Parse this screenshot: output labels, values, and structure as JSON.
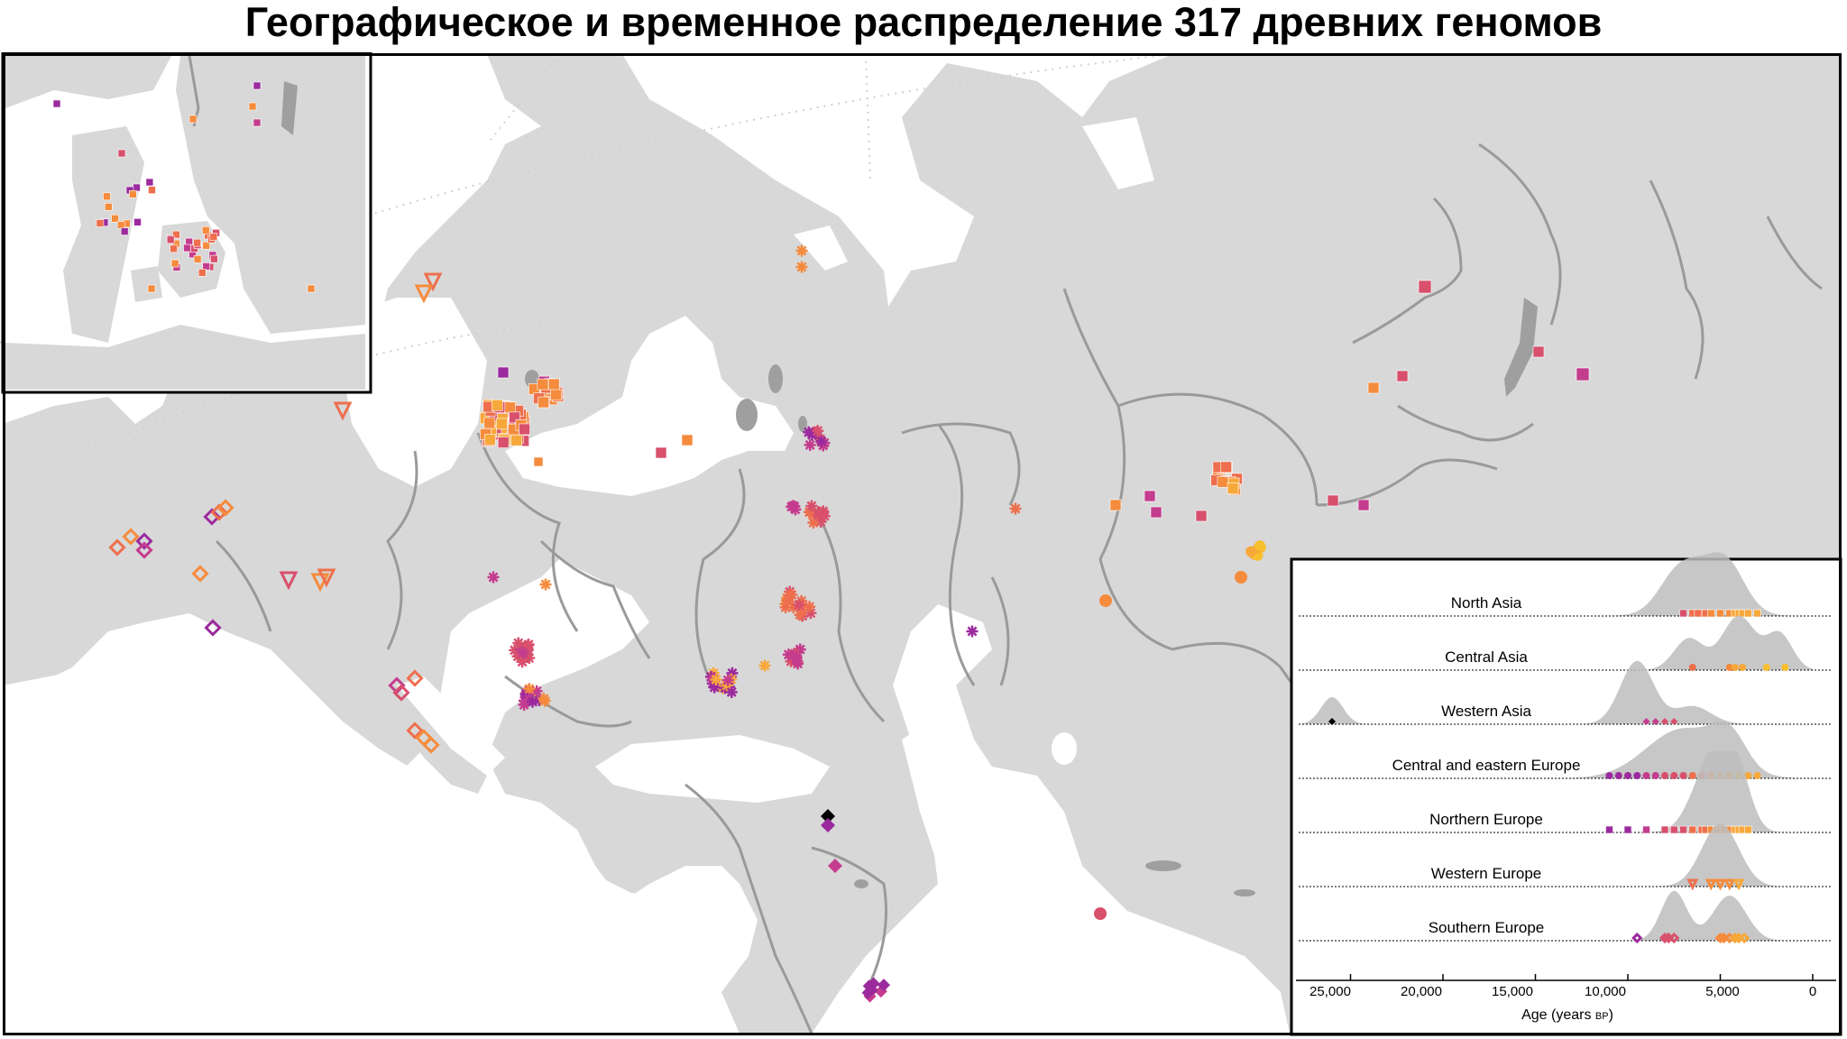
{
  "title": "Географическое и временное распределение 317 древних геномов",
  "colors": {
    "sea": "#ffffff",
    "land": "#d8d8d8",
    "border": "#9a9a9a",
    "lake": "#9f9f9f",
    "ridge_fill": "#bdbdbd",
    "ancient": "#000000",
    "purple": "#9b2a9e",
    "magenta": "#c43c8e",
    "rose": "#d8506c",
    "coral": "#ee6f4d",
    "orange": "#f58b3c",
    "amber": "#f7a83a",
    "gold": "#f8c02f"
  },
  "ridge_plot": {
    "regions": [
      {
        "label": "North Asia",
        "symbol": "square"
      },
      {
        "label": "Central Asia",
        "symbol": "circle"
      },
      {
        "label": "Western Asia",
        "symbol": "diamond-filled"
      },
      {
        "label": "Central and eastern Europe",
        "symbol": "asterisk"
      },
      {
        "label": "Northern Europe",
        "symbol": "square"
      },
      {
        "label": "Western Europe",
        "symbol": "triangle-down"
      },
      {
        "label": "Southern Europe",
        "symbol": "diamond-open"
      }
    ],
    "x_ticks": [
      "25,000",
      "20,000",
      "15,000",
      "10,000",
      "5,000",
      "0"
    ],
    "x_label_main": "Age (years ",
    "x_label_unit": "BP",
    "x_label_close": ")"
  }
}
